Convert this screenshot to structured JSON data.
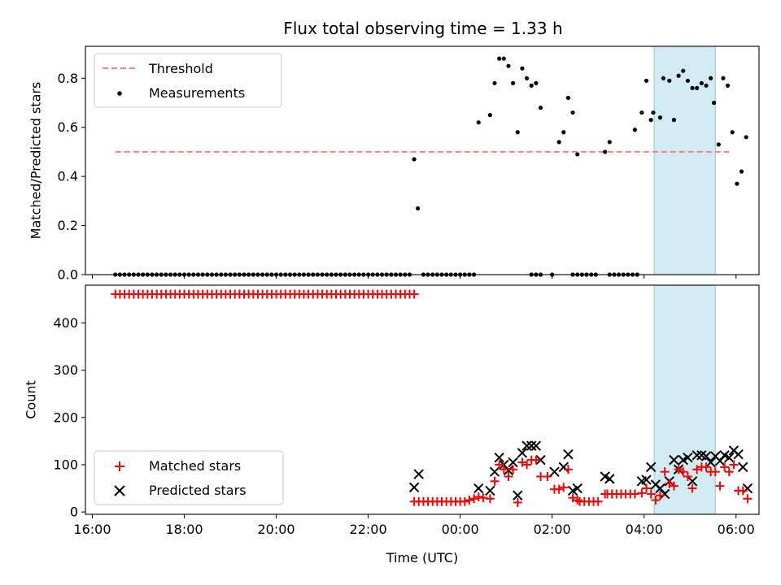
{
  "chart_data": {
    "type": "scatter",
    "title": "Flux total observing time = 1.33 h",
    "xlabel": "Time (UTC)",
    "x_unit": "hours since 16:00 UTC",
    "xlim": [
      -0.15,
      14.5
    ],
    "xticks": [
      {
        "x": 0,
        "label": "16:00"
      },
      {
        "x": 2,
        "label": "18:00"
      },
      {
        "x": 4,
        "label": "20:00"
      },
      {
        "x": 6,
        "label": "22:00"
      },
      {
        "x": 8,
        "label": "00:00"
      },
      {
        "x": 10,
        "label": "02:00"
      },
      {
        "x": 12,
        "label": "04:00"
      },
      {
        "x": 14,
        "label": "06:00"
      }
    ],
    "shaded_span": {
      "x_start": 12.22,
      "x_end": 13.55,
      "color": "#add8e6"
    },
    "panels": [
      {
        "ylabel": "Matched/Predicted stars",
        "ylim": [
          0,
          0.93
        ],
        "yticks": [
          {
            "y": 0,
            "label": "0.0"
          },
          {
            "y": 0.2,
            "label": "0.2"
          },
          {
            "y": 0.4,
            "label": "0.4"
          },
          {
            "y": 0.6,
            "label": "0.6"
          },
          {
            "y": 0.8,
            "label": "0.8"
          }
        ],
        "legend": {
          "position": "upper-left",
          "entries": [
            "Threshold",
            "Measurements"
          ]
        },
        "threshold": {
          "name": "Threshold",
          "value": 0.5,
          "x_start": 0.5,
          "x_end": 13.85,
          "color": "#ff7f7f"
        },
        "measurements": {
          "name": "Measurements",
          "color": "#000000",
          "zeros_x": [
            0.5,
            0.6,
            0.7,
            0.8,
            0.9,
            1.0,
            1.1,
            1.2,
            1.3,
            1.4,
            1.5,
            1.6,
            1.7,
            1.8,
            1.9,
            2.0,
            2.1,
            2.2,
            2.3,
            2.4,
            2.5,
            2.6,
            2.7,
            2.8,
            2.9,
            3.0,
            3.1,
            3.2,
            3.3,
            3.4,
            3.5,
            3.6,
            3.7,
            3.8,
            3.9,
            4.0,
            4.1,
            4.2,
            4.3,
            4.4,
            4.5,
            4.6,
            4.7,
            4.8,
            4.9,
            5.0,
            5.1,
            5.2,
            5.3,
            5.4,
            5.5,
            5.6,
            5.7,
            5.8,
            5.9,
            6.0,
            6.1,
            6.2,
            6.3,
            6.4,
            6.5,
            6.6,
            6.7,
            6.8,
            6.9,
            7.2,
            7.3,
            7.4,
            7.5,
            7.6,
            7.7,
            7.8,
            7.9,
            8.0,
            8.1,
            8.2,
            8.3,
            9.55,
            9.65,
            9.75,
            10.0,
            10.45,
            10.55,
            10.65,
            10.75,
            10.85,
            10.95,
            11.25,
            11.35,
            11.45,
            11.55,
            11.65,
            11.75,
            11.85
          ],
          "points": [
            {
              "x": 7.0,
              "y": 0.47
            },
            {
              "x": 7.08,
              "y": 0.27
            },
            {
              "x": 8.4,
              "y": 0.62
            },
            {
              "x": 8.65,
              "y": 0.65
            },
            {
              "x": 8.75,
              "y": 0.78
            },
            {
              "x": 8.85,
              "y": 0.88
            },
            {
              "x": 8.95,
              "y": 0.88
            },
            {
              "x": 9.05,
              "y": 0.85
            },
            {
              "x": 9.15,
              "y": 0.78
            },
            {
              "x": 9.25,
              "y": 0.58
            },
            {
              "x": 9.35,
              "y": 0.84
            },
            {
              "x": 9.45,
              "y": 0.8
            },
            {
              "x": 9.55,
              "y": 0.77
            },
            {
              "x": 9.65,
              "y": 0.78
            },
            {
              "x": 9.75,
              "y": 0.68
            },
            {
              "x": 10.15,
              "y": 0.54
            },
            {
              "x": 10.25,
              "y": 0.58
            },
            {
              "x": 10.35,
              "y": 0.72
            },
            {
              "x": 10.45,
              "y": 0.66
            },
            {
              "x": 10.55,
              "y": 0.49
            },
            {
              "x": 11.15,
              "y": 0.5
            },
            {
              "x": 11.25,
              "y": 0.54
            },
            {
              "x": 11.8,
              "y": 0.59
            },
            {
              "x": 11.95,
              "y": 0.66
            },
            {
              "x": 12.05,
              "y": 0.79
            },
            {
              "x": 12.15,
              "y": 0.63
            },
            {
              "x": 12.2,
              "y": 0.66
            },
            {
              "x": 12.35,
              "y": 0.64
            },
            {
              "x": 12.42,
              "y": 0.8
            },
            {
              "x": 12.55,
              "y": 0.79
            },
            {
              "x": 12.65,
              "y": 0.63
            },
            {
              "x": 12.75,
              "y": 0.81
            },
            {
              "x": 12.85,
              "y": 0.83
            },
            {
              "x": 12.95,
              "y": 0.79
            },
            {
              "x": 13.05,
              "y": 0.76
            },
            {
              "x": 13.15,
              "y": 0.76
            },
            {
              "x": 13.25,
              "y": 0.78
            },
            {
              "x": 13.35,
              "y": 0.77
            },
            {
              "x": 13.45,
              "y": 0.8
            },
            {
              "x": 13.52,
              "y": 0.7
            },
            {
              "x": 13.62,
              "y": 0.53
            },
            {
              "x": 13.72,
              "y": 0.8
            },
            {
              "x": 13.82,
              "y": 0.77
            },
            {
              "x": 13.92,
              "y": 0.58
            },
            {
              "x": 14.02,
              "y": 0.37
            },
            {
              "x": 14.12,
              "y": 0.42
            },
            {
              "x": 14.22,
              "y": 0.56
            }
          ]
        }
      },
      {
        "ylabel": "Count",
        "ylim": [
          -5,
          480
        ],
        "yticks": [
          {
            "y": 0,
            "label": "0"
          },
          {
            "y": 100,
            "label": "100"
          },
          {
            "y": 200,
            "label": "200"
          },
          {
            "y": 300,
            "label": "300"
          },
          {
            "y": 400,
            "label": "400"
          }
        ],
        "legend": {
          "position": "lower-left",
          "entries": [
            "Matched stars",
            "Predicted stars"
          ]
        },
        "series": [
          {
            "name": "Matched stars",
            "marker": "plus",
            "color": "#ff0000",
            "const_runs": [
              {
                "x_start": 0.5,
                "x_end": 7.0,
                "step": 0.1,
                "value": 461
              },
              {
                "x_start": 7.0,
                "x_end": 8.1,
                "step": 0.1,
                "value": 22
              },
              {
                "x_start": 10.6,
                "x_end": 11.0,
                "step": 0.1,
                "value": 22
              },
              {
                "x_start": 11.2,
                "x_end": 11.8,
                "step": 0.1,
                "value": 38
              }
            ],
            "points": [
              {
                "x": 8.2,
                "y": 25
              },
              {
                "x": 8.3,
                "y": 28
              },
              {
                "x": 8.4,
                "y": 32
              },
              {
                "x": 8.5,
                "y": 30
              },
              {
                "x": 8.65,
                "y": 28
              },
              {
                "x": 8.75,
                "y": 65
              },
              {
                "x": 8.85,
                "y": 100
              },
              {
                "x": 8.95,
                "y": 90
              },
              {
                "x": 9.05,
                "y": 75
              },
              {
                "x": 9.15,
                "y": 90
              },
              {
                "x": 9.25,
                "y": 20
              },
              {
                "x": 9.35,
                "y": 105
              },
              {
                "x": 9.45,
                "y": 100
              },
              {
                "x": 9.55,
                "y": 110
              },
              {
                "x": 9.65,
                "y": 110
              },
              {
                "x": 9.75,
                "y": 75
              },
              {
                "x": 9.9,
                "y": 75
              },
              {
                "x": 10.05,
                "y": 48
              },
              {
                "x": 10.15,
                "y": 48
              },
              {
                "x": 10.25,
                "y": 52
              },
              {
                "x": 10.35,
                "y": 90
              },
              {
                "x": 10.45,
                "y": 30
              },
              {
                "x": 10.55,
                "y": 25
              },
              {
                "x": 11.15,
                "y": 38
              },
              {
                "x": 11.95,
                "y": 40
              },
              {
                "x": 12.05,
                "y": 50
              },
              {
                "x": 12.15,
                "y": 38
              },
              {
                "x": 12.25,
                "y": 25
              },
              {
                "x": 12.35,
                "y": 35
              },
              {
                "x": 12.45,
                "y": 85
              },
              {
                "x": 12.55,
                "y": 60
              },
              {
                "x": 12.65,
                "y": 55
              },
              {
                "x": 12.75,
                "y": 90
              },
              {
                "x": 12.85,
                "y": 85
              },
              {
                "x": 12.95,
                "y": 75
              },
              {
                "x": 13.05,
                "y": 50
              },
              {
                "x": 13.15,
                "y": 90
              },
              {
                "x": 13.25,
                "y": 95
              },
              {
                "x": 13.35,
                "y": 95
              },
              {
                "x": 13.45,
                "y": 85
              },
              {
                "x": 13.55,
                "y": 85
              },
              {
                "x": 13.65,
                "y": 55
              },
              {
                "x": 13.75,
                "y": 95
              },
              {
                "x": 13.85,
                "y": 85
              },
              {
                "x": 13.95,
                "y": 100
              },
              {
                "x": 14.05,
                "y": 45
              },
              {
                "x": 14.15,
                "y": 45
              },
              {
                "x": 14.25,
                "y": 28
              }
            ]
          },
          {
            "name": "Predicted stars",
            "marker": "x",
            "color": "#000000",
            "points": [
              {
                "x": 7.0,
                "y": 52
              },
              {
                "x": 7.1,
                "y": 80
              },
              {
                "x": 8.4,
                "y": 50
              },
              {
                "x": 8.65,
                "y": 45
              },
              {
                "x": 8.75,
                "y": 85
              },
              {
                "x": 8.85,
                "y": 115
              },
              {
                "x": 8.95,
                "y": 100
              },
              {
                "x": 9.05,
                "y": 88
              },
              {
                "x": 9.15,
                "y": 105
              },
              {
                "x": 9.25,
                "y": 35
              },
              {
                "x": 9.35,
                "y": 125
              },
              {
                "x": 9.45,
                "y": 140
              },
              {
                "x": 9.55,
                "y": 140
              },
              {
                "x": 9.65,
                "y": 140
              },
              {
                "x": 9.75,
                "y": 110
              },
              {
                "x": 10.05,
                "y": 85
              },
              {
                "x": 10.25,
                "y": 95
              },
              {
                "x": 10.35,
                "y": 122
              },
              {
                "x": 10.45,
                "y": 45
              },
              {
                "x": 10.55,
                "y": 50
              },
              {
                "x": 11.15,
                "y": 75
              },
              {
                "x": 11.25,
                "y": 70
              },
              {
                "x": 11.95,
                "y": 65
              },
              {
                "x": 12.05,
                "y": 68
              },
              {
                "x": 12.15,
                "y": 95
              },
              {
                "x": 12.25,
                "y": 58
              },
              {
                "x": 12.35,
                "y": 50
              },
              {
                "x": 12.45,
                "y": 38
              },
              {
                "x": 12.55,
                "y": 65
              },
              {
                "x": 12.65,
                "y": 110
              },
              {
                "x": 12.75,
                "y": 90
              },
              {
                "x": 12.85,
                "y": 110
              },
              {
                "x": 12.95,
                "y": 115
              },
              {
                "x": 13.05,
                "y": 65
              },
              {
                "x": 13.15,
                "y": 120
              },
              {
                "x": 13.25,
                "y": 120
              },
              {
                "x": 13.35,
                "y": 118
              },
              {
                "x": 13.45,
                "y": 105
              },
              {
                "x": 13.55,
                "y": 118
              },
              {
                "x": 13.65,
                "y": 108
              },
              {
                "x": 13.75,
                "y": 120
              },
              {
                "x": 13.85,
                "y": 115
              },
              {
                "x": 13.95,
                "y": 130
              },
              {
                "x": 14.05,
                "y": 122
              },
              {
                "x": 14.15,
                "y": 95
              },
              {
                "x": 14.25,
                "y": 50
              }
            ]
          }
        ]
      }
    ]
  }
}
